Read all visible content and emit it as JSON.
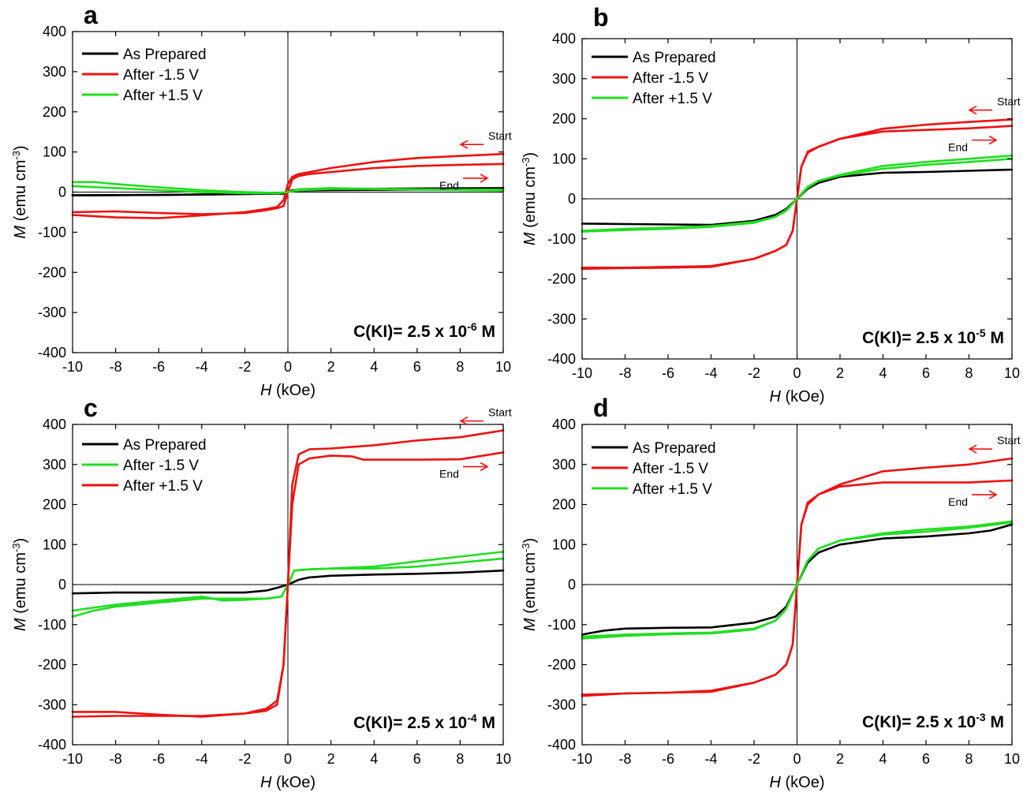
{
  "chart_data": [
    {
      "panel": "a",
      "type": "line",
      "xlabel_italic": "H",
      "xlabel_rest": " (kOe)",
      "ylabel_italic": "M",
      "ylabel_rest": " (emu cm",
      "ylabel_sup": "-3",
      "ylabel_close": ")",
      "xlim": [
        -10,
        10
      ],
      "ylim": [
        -400,
        400
      ],
      "xticks": [
        -10,
        -8,
        -6,
        -4,
        -2,
        0,
        2,
        4,
        6,
        8,
        10
      ],
      "yticks": [
        -400,
        -300,
        -200,
        -100,
        0,
        100,
        200,
        300,
        400
      ],
      "legend": [
        "As Prepared",
        "After -1.5 V",
        "After +1.5 V"
      ],
      "annotation": {
        "prefix": "C(KI)= 2.5 x 10",
        "exp": "-6",
        "suffix": " M"
      },
      "arrow_labels": {
        "start": "Start",
        "end": "End"
      },
      "series": [
        {
          "name": "As Prepared",
          "color": "#000000",
          "x": [
            -10,
            -6,
            -2,
            -0.2,
            0,
            0.2,
            2,
            6,
            10
          ],
          "y": [
            -8,
            -7,
            -5,
            -3,
            0,
            5,
            8,
            9,
            10
          ]
        },
        {
          "name": "As Prepared",
          "color": "#000000",
          "x": [
            10,
            6,
            2,
            0.2,
            0,
            -0.2,
            -2,
            -6,
            -10
          ],
          "y": [
            6,
            6,
            5,
            4,
            0,
            -4,
            -5,
            -7,
            -8
          ]
        },
        {
          "name": "After -1.5 V",
          "color": "#ee1111",
          "x": [
            10,
            8,
            6,
            4,
            2,
            1,
            0.5,
            0.2,
            0,
            -0.2,
            -0.5,
            -1,
            -2,
            -4,
            -6,
            -8,
            -10
          ],
          "y": [
            95,
            90,
            85,
            75,
            60,
            50,
            45,
            38,
            20,
            -20,
            -37,
            -42,
            -50,
            -58,
            -65,
            -63,
            -57
          ]
        },
        {
          "name": "After -1.5 V",
          "color": "#ee1111",
          "x": [
            -10,
            -8,
            -6,
            -4,
            -2,
            -1,
            -0.5,
            -0.2,
            0,
            0.2,
            0.5,
            1,
            2,
            4,
            6,
            8,
            10
          ],
          "y": [
            -50,
            -48,
            -52,
            -55,
            -52,
            -45,
            -40,
            -35,
            0,
            32,
            40,
            45,
            50,
            60,
            65,
            68,
            70
          ]
        },
        {
          "name": "After +1.5 V",
          "color": "#22dd22",
          "x": [
            -10,
            -9,
            -8,
            -6,
            -4,
            -2,
            -0.5,
            0,
            0.5,
            2,
            4,
            6,
            8,
            10
          ],
          "y": [
            25,
            25,
            20,
            12,
            5,
            0,
            -2,
            0,
            5,
            8,
            8,
            7,
            6,
            6
          ]
        },
        {
          "name": "After +1.5 V",
          "color": "#22dd22",
          "x": [
            10,
            8,
            6,
            4,
            2,
            0.5,
            0,
            -0.5,
            -2,
            -4,
            -6,
            -8,
            -10
          ],
          "y": [
            4,
            5,
            6,
            8,
            10,
            7,
            0,
            -3,
            -3,
            0,
            5,
            10,
            15
          ]
        }
      ]
    },
    {
      "panel": "b",
      "type": "line",
      "xlabel_italic": "H",
      "xlabel_rest": " (kOe)",
      "ylabel_italic": "M",
      "ylabel_rest": " (emu cm",
      "ylabel_sup": "-3",
      "ylabel_close": ")",
      "xlim": [
        -10,
        10
      ],
      "ylim": [
        -400,
        400
      ],
      "xticks": [
        -10,
        -8,
        -6,
        -4,
        -2,
        0,
        2,
        4,
        6,
        8,
        10
      ],
      "yticks": [
        -400,
        -300,
        -200,
        -100,
        0,
        100,
        200,
        300,
        400
      ],
      "legend": [
        "As Prepared",
        "After -1.5 V",
        "After +1.5 V"
      ],
      "annotation": {
        "prefix": "C(KI)= 2.5 x 10",
        "exp": "-5",
        "suffix": " M"
      },
      "arrow_labels": {
        "start": "Start",
        "end": "End"
      },
      "series": [
        {
          "name": "As Prepared",
          "color": "#000000",
          "x": [
            -10,
            -8,
            -6,
            -4,
            -2,
            -1,
            -0.5,
            0,
            0.5,
            1,
            2,
            4,
            6,
            8,
            10
          ],
          "y": [
            -62,
            -63,
            -64,
            -65,
            -55,
            -40,
            -25,
            0,
            25,
            40,
            55,
            65,
            67,
            70,
            73
          ]
        },
        {
          "name": "After -1.5 V",
          "color": "#ee1111",
          "x": [
            10,
            8,
            6,
            4,
            2,
            1,
            0.5,
            0.2,
            0,
            -0.2,
            -0.5,
            -1,
            -2,
            -4,
            -6,
            -8,
            -10
          ],
          "y": [
            198,
            192,
            185,
            175,
            150,
            130,
            115,
            80,
            0,
            -80,
            -115,
            -130,
            -150,
            -170,
            -172,
            -173,
            -175
          ]
        },
        {
          "name": "After -1.5 V",
          "color": "#ee1111",
          "x": [
            -10,
            -8,
            -6,
            -4,
            -2,
            -1,
            -0.5,
            -0.2,
            0,
            0.2,
            0.5,
            1,
            2,
            4,
            6,
            8,
            10
          ],
          "y": [
            -172,
            -172,
            -170,
            -168,
            -150,
            -130,
            -115,
            -80,
            0,
            80,
            118,
            130,
            150,
            168,
            172,
            176,
            182
          ]
        },
        {
          "name": "After +1.5 V",
          "color": "#22dd22",
          "x": [
            10,
            8,
            6,
            4,
            2,
            1,
            0.5,
            0,
            -0.5,
            -1,
            -2,
            -4,
            -6,
            -8,
            -10
          ],
          "y": [
            108,
            100,
            92,
            82,
            60,
            45,
            30,
            0,
            -30,
            -45,
            -60,
            -70,
            -75,
            -78,
            -82
          ]
        },
        {
          "name": "After +1.5 V",
          "color": "#22dd22",
          "x": [
            -10,
            -8,
            -6,
            -4,
            -2,
            -1,
            -0.5,
            0,
            0.5,
            1,
            2,
            4,
            6,
            8,
            10
          ],
          "y": [
            -80,
            -75,
            -72,
            -68,
            -58,
            -45,
            -28,
            0,
            28,
            45,
            58,
            75,
            85,
            92,
            100
          ]
        }
      ]
    },
    {
      "panel": "c",
      "type": "line",
      "xlabel_italic": "H",
      "xlabel_rest": " (kOe)",
      "ylabel_italic": "M",
      "ylabel_rest": " (emu cm",
      "ylabel_sup": "-3",
      "ylabel_close": ")",
      "xlim": [
        -10,
        10
      ],
      "ylim": [
        -400,
        400
      ],
      "xticks": [
        -10,
        -8,
        -6,
        -4,
        -2,
        0,
        2,
        4,
        6,
        8,
        10
      ],
      "yticks": [
        -400,
        -300,
        -200,
        -100,
        0,
        100,
        200,
        300,
        400
      ],
      "legend": [
        "As Prepared",
        "After -1.5 V",
        "After +1.5 V"
      ],
      "legend_colors": [
        "#000000",
        "#22dd22",
        "#ee1111"
      ],
      "annotation": {
        "prefix": "C(KI)= 2.5 x 10",
        "exp": "-4",
        "suffix": " M"
      },
      "arrow_labels": {
        "start": "Start",
        "end": "End"
      },
      "series": [
        {
          "name": "As Prepared",
          "color": "#000000",
          "x": [
            -10,
            -8,
            -6,
            -4,
            -2,
            -1,
            -0.5,
            0,
            0.5,
            1,
            2,
            4,
            6,
            8,
            10
          ],
          "y": [
            -22,
            -20,
            -20,
            -20,
            -20,
            -15,
            -8,
            0,
            12,
            18,
            22,
            25,
            27,
            30,
            35
          ]
        },
        {
          "name": "After -1.5 V",
          "color": "#22dd22",
          "x": [
            -10,
            -9,
            -8,
            -6,
            -4,
            -3,
            -2,
            -1,
            -0.3,
            0,
            0.3,
            1,
            2,
            4,
            6,
            8,
            10
          ],
          "y": [
            -80,
            -65,
            -55,
            -45,
            -35,
            -35,
            -35,
            -35,
            -30,
            0,
            35,
            38,
            40,
            40,
            45,
            55,
            65
          ]
        },
        {
          "name": "After -1.5 V",
          "color": "#22dd22",
          "x": [
            10,
            8,
            6,
            4,
            2,
            1,
            0.3,
            0,
            -0.3,
            -1,
            -2,
            -3,
            -4,
            -6,
            -8,
            -10
          ],
          "y": [
            82,
            70,
            58,
            45,
            40,
            38,
            35,
            0,
            -30,
            -35,
            -38,
            -40,
            -30,
            -40,
            -50,
            -65
          ]
        },
        {
          "name": "After +1.5 V",
          "color": "#ee1111",
          "x": [
            10,
            8,
            6,
            4,
            2,
            1,
            0.5,
            0.2,
            0,
            -0.2,
            -0.5,
            -1,
            -2,
            -4,
            -6,
            -8,
            -10
          ],
          "y": [
            385,
            368,
            360,
            348,
            340,
            338,
            325,
            250,
            0,
            -200,
            -300,
            -315,
            -322,
            -330,
            -325,
            -318,
            -318
          ]
        },
        {
          "name": "After +1.5 V",
          "color": "#ee1111",
          "x": [
            -10,
            -8,
            -6,
            -4,
            -2,
            -1,
            -0.5,
            -0.2,
            0,
            0.2,
            0.5,
            1,
            2,
            3,
            3.5,
            4,
            6,
            8,
            10
          ],
          "y": [
            -330,
            -328,
            -328,
            -328,
            -322,
            -310,
            -290,
            -200,
            0,
            200,
            300,
            315,
            322,
            320,
            312,
            312,
            312,
            313,
            330
          ]
        }
      ]
    },
    {
      "panel": "d",
      "type": "line",
      "xlabel_italic": "H",
      "xlabel_rest": " (kOe)",
      "ylabel_italic": "M",
      "ylabel_rest": " (emu cm",
      "ylabel_sup": "-3",
      "ylabel_close": ")",
      "xlim": [
        -10,
        10
      ],
      "ylim": [
        -400,
        400
      ],
      "xticks": [
        -10,
        -8,
        -6,
        -4,
        -2,
        0,
        2,
        4,
        6,
        8,
        10
      ],
      "yticks": [
        -400,
        -300,
        -200,
        -100,
        0,
        100,
        200,
        300,
        400
      ],
      "legend": [
        "As Prepared",
        "After -1.5 V",
        "After +1.5 V"
      ],
      "annotation": {
        "prefix": "C(KI)= 2.5 x 10",
        "exp": "-3",
        "suffix": " M"
      },
      "arrow_labels": {
        "start": "Start",
        "end": "End"
      },
      "series": [
        {
          "name": "As Prepared",
          "color": "#000000",
          "x": [
            -10,
            -9,
            -8,
            -6,
            -4,
            -2,
            -1,
            -0.5,
            0,
            0.5,
            1,
            2,
            4,
            6,
            8,
            9,
            10
          ],
          "y": [
            -125,
            -115,
            -110,
            -108,
            -107,
            -95,
            -80,
            -55,
            0,
            55,
            80,
            100,
            115,
            120,
            128,
            135,
            150
          ]
        },
        {
          "name": "After -1.5 V",
          "color": "#ee1111",
          "x": [
            10,
            8,
            6,
            4,
            2,
            1,
            0.5,
            0.2,
            0,
            -0.2,
            -0.5,
            -1,
            -2,
            -4,
            -6,
            -8,
            -10
          ],
          "y": [
            315,
            300,
            292,
            283,
            250,
            225,
            200,
            150,
            0,
            -150,
            -200,
            -225,
            -245,
            -265,
            -270,
            -272,
            -278
          ]
        },
        {
          "name": "After -1.5 V",
          "color": "#ee1111",
          "x": [
            -10,
            -8,
            -6,
            -4,
            -2,
            -1,
            -0.5,
            -0.2,
            0,
            0.2,
            0.5,
            1,
            2,
            4,
            6,
            8,
            10
          ],
          "y": [
            -275,
            -272,
            -270,
            -268,
            -245,
            -225,
            -200,
            -150,
            0,
            150,
            205,
            225,
            245,
            255,
            255,
            255,
            260
          ]
        },
        {
          "name": "After +1.5 V",
          "color": "#22dd22",
          "x": [
            10,
            8,
            6,
            4,
            2,
            1,
            0.5,
            0,
            -0.5,
            -1,
            -2,
            -4,
            -6,
            -8,
            -10
          ],
          "y": [
            158,
            145,
            138,
            128,
            110,
            90,
            60,
            0,
            -60,
            -90,
            -110,
            -120,
            -122,
            -125,
            -130
          ]
        },
        {
          "name": "After +1.5 V",
          "color": "#22dd22",
          "x": [
            -10,
            -8,
            -6,
            -4,
            -2,
            -1,
            -0.5,
            0,
            0.5,
            1,
            2,
            4,
            6,
            8,
            10
          ],
          "y": [
            -135,
            -128,
            -124,
            -122,
            -112,
            -90,
            -60,
            0,
            60,
            90,
            110,
            125,
            132,
            142,
            155
          ]
        }
      ]
    }
  ]
}
